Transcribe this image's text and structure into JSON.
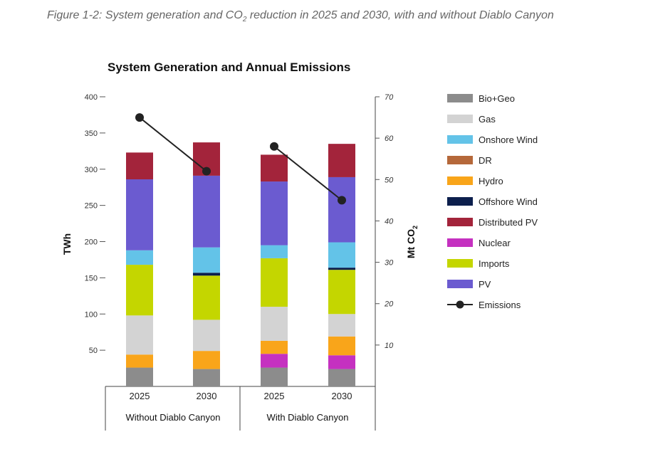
{
  "caption": {
    "prefix": "Figure 1-2: System generation and CO",
    "sub": "2",
    "suffix": " reduction in 2025 and 2030, with and without Diablo Canyon"
  },
  "chart_data": {
    "type": "bar",
    "stacked": true,
    "title": "System Generation and Annual Emissions",
    "ylabel": "TWh",
    "y2label": "Mt CO2",
    "ylim": [
      0,
      400
    ],
    "y2lim": [
      0,
      70
    ],
    "yticks": [
      50,
      100,
      150,
      200,
      250,
      300,
      350,
      400
    ],
    "y2ticks": [
      10,
      20,
      30,
      40,
      50,
      60,
      70
    ],
    "categories": [
      "2025",
      "2030",
      "2025",
      "2030"
    ],
    "groups": [
      {
        "label": "Without Diablo Canyon",
        "categories": [
          0,
          1
        ]
      },
      {
        "label": "With Diablo Canyon",
        "categories": [
          2,
          3
        ]
      }
    ],
    "legend_position": "right",
    "series": [
      {
        "name": "Bio+Geo",
        "color": "#8c8c8c",
        "values": [
          26,
          24,
          26,
          24
        ]
      },
      {
        "name": "Gas",
        "color": "#d3d3d3",
        "values": [
          54,
          43,
          47,
          31
        ]
      },
      {
        "name": "Onshore Wind",
        "color": "#63c3e8",
        "values": [
          20,
          35,
          18,
          35
        ]
      },
      {
        "name": "DR",
        "color": "#b5683a",
        "values": [
          0,
          0,
          0,
          0
        ]
      },
      {
        "name": "Hydro",
        "color": "#f9a51a",
        "values": [
          18,
          25,
          18,
          26
        ]
      },
      {
        "name": "Offshore Wind",
        "color": "#0c1f4d",
        "values": [
          0,
          4,
          0,
          3
        ]
      },
      {
        "name": "Distributed PV",
        "color": "#a3243b",
        "values": [
          37,
          46,
          37,
          46
        ]
      },
      {
        "name": "Nuclear",
        "color": "#c531c0",
        "values": [
          0,
          0,
          19,
          19
        ]
      },
      {
        "name": "Imports",
        "color": "#c4d600",
        "values": [
          70,
          61,
          67,
          61
        ]
      },
      {
        "name": "PV",
        "color": "#6b5bd0",
        "values": [
          98,
          99,
          88,
          90
        ]
      }
    ],
    "stack_order": [
      "Bio+Geo",
      "Nuclear",
      "Hydro",
      "Gas",
      "Imports",
      "Offshore Wind",
      "Onshore Wind",
      "PV",
      "Distributed PV"
    ],
    "emissions": {
      "name": "Emissions",
      "color": "#222222",
      "values": [
        65,
        52,
        58,
        45
      ]
    }
  }
}
